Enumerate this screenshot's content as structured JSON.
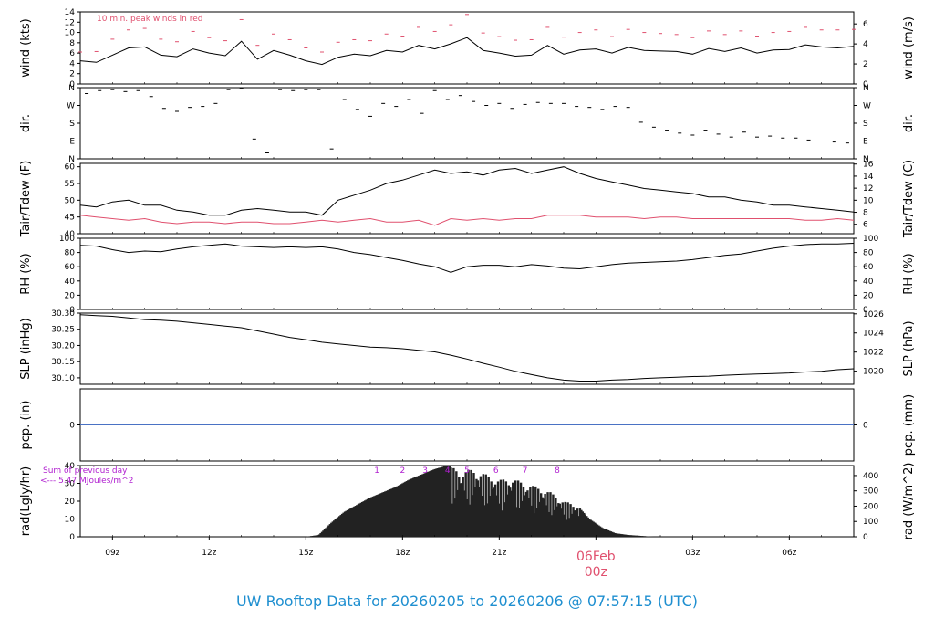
{
  "footer": {
    "title": "UW Rooftop Data for 20260205  to  20260206 @ 07:57:15  (UTC)"
  },
  "time_axis": {
    "ticks": [
      "09z",
      "12z",
      "15z",
      "18z",
      "21z",
      "03z",
      "06z"
    ],
    "day_label": "06Feb",
    "day_hour": "00z",
    "colors": {
      "day_label": "#e0506e"
    }
  },
  "chart_data": [
    {
      "type": "line",
      "id": "wind",
      "ylabel": "wind (kts)",
      "ylabel2": "wind (m/s)",
      "ylim": [
        0,
        14
      ],
      "yticks": [
        0,
        2,
        4,
        6,
        8,
        10,
        12,
        14
      ],
      "yticks2": [
        0,
        2,
        4,
        6
      ],
      "annotation": "10 min. peak winds in red",
      "annotation_color": "#e0506e",
      "x_range_hours": [
        8.0,
        32.0
      ],
      "x": [
        8.0,
        8.5,
        9.0,
        9.5,
        10.0,
        10.5,
        11.0,
        11.5,
        12.0,
        12.5,
        13.0,
        13.5,
        14.0,
        14.5,
        15.0,
        15.5,
        16.0,
        16.5,
        17.0,
        17.5,
        18.0,
        18.5,
        19.0,
        19.5,
        20.0,
        20.5,
        21.0,
        21.5,
        22.0,
        22.5,
        23.0,
        23.5,
        24.0,
        24.5,
        25.0,
        25.5,
        26.0,
        26.5,
        27.0,
        27.5,
        28.0,
        28.5,
        29.0,
        29.5,
        30.0,
        30.5,
        31.0,
        31.5,
        32.0
      ],
      "series": [
        {
          "color": "#000000",
          "values": [
            4.5,
            4.2,
            5.6,
            7.0,
            7.2,
            5.6,
            5.3,
            6.8,
            6.0,
            5.5,
            8.3,
            4.8,
            6.5,
            5.6,
            4.5,
            3.8,
            5.2,
            5.8,
            5.5,
            6.5,
            6.2,
            7.5,
            6.8,
            7.8,
            9.0,
            6.5,
            6.0,
            5.4,
            5.6,
            7.5,
            5.8,
            6.6,
            6.8,
            6.0,
            7.1,
            6.5,
            6.4,
            6.3,
            5.8,
            6.9,
            6.3,
            7.0,
            6.0,
            6.6,
            6.7,
            7.6,
            7.2,
            7.0,
            7.3
          ]
        },
        {
          "color": "#e0506e",
          "values": [
            6.2,
            6.3,
            8.7,
            10.5,
            10.8,
            8.7,
            8.2,
            10.2,
            9.0,
            8.4,
            12.5,
            7.5,
            9.7,
            8.6,
            7.0,
            6.2,
            8.1,
            8.6,
            8.4,
            9.7,
            9.3,
            11.0,
            10.2,
            11.5,
            13.5,
            9.9,
            9.2,
            8.5,
            8.6,
            11.0,
            9.1,
            10.0,
            10.5,
            9.2,
            10.6,
            10.0,
            9.8,
            9.6,
            9.0,
            10.3,
            9.6,
            10.3,
            9.3,
            10.0,
            10.2,
            11.0,
            10.5,
            10.5,
            10.6
          ]
        }
      ]
    },
    {
      "type": "scatter",
      "id": "dir",
      "ylabel": "dir.",
      "ylabel2": "dir.",
      "yticklabels": [
        "N",
        "E",
        "S",
        "W",
        "N"
      ],
      "ylim": [
        0,
        360
      ],
      "x": [
        8.2,
        8.6,
        9.0,
        9.4,
        9.8,
        10.2,
        10.6,
        11.0,
        11.4,
        11.8,
        12.2,
        12.6,
        13.0,
        13.4,
        13.8,
        14.2,
        14.6,
        15.0,
        15.4,
        15.8,
        16.2,
        16.6,
        17.0,
        17.4,
        17.8,
        18.2,
        18.6,
        19.0,
        19.4,
        19.8,
        20.2,
        20.6,
        21.0,
        21.4,
        21.8,
        22.2,
        22.6,
        23.0,
        23.4,
        23.8,
        24.2,
        24.6,
        25.0,
        25.4,
        25.8,
        26.2,
        26.6,
        27.0,
        27.4,
        27.8,
        28.2,
        28.6,
        29.0,
        29.4,
        29.8,
        30.2,
        30.6,
        31.0,
        31.4,
        31.8
      ],
      "values": [
        330,
        345,
        350,
        340,
        345,
        315,
        255,
        240,
        260,
        265,
        280,
        350,
        355,
        100,
        30,
        350,
        345,
        350,
        350,
        50,
        300,
        250,
        215,
        280,
        265,
        300,
        230,
        345,
        300,
        320,
        290,
        270,
        280,
        255,
        275,
        285,
        280,
        280,
        265,
        260,
        250,
        265,
        260,
        185,
        160,
        145,
        130,
        120,
        145,
        125,
        110,
        135,
        110,
        115,
        105,
        105,
        95,
        90,
        85,
        80
      ]
    },
    {
      "type": "line",
      "id": "temp",
      "ylabel": "Tair/Tdew (F)",
      "ylabel2": "Tair/Tdew (C)",
      "ylim": [
        40,
        61
      ],
      "yticks": [
        40,
        45,
        50,
        55,
        60
      ],
      "yticks2": [
        6,
        8,
        10,
        12,
        14,
        16
      ],
      "x": [
        8.0,
        8.5,
        9.0,
        9.5,
        10.0,
        10.5,
        11.0,
        11.5,
        12.0,
        12.5,
        13.0,
        13.5,
        14.0,
        14.5,
        15.0,
        15.5,
        16.0,
        16.5,
        17.0,
        17.5,
        18.0,
        18.5,
        19.0,
        19.5,
        20.0,
        20.5,
        21.0,
        21.5,
        22.0,
        22.5,
        23.0,
        23.5,
        24.0,
        24.5,
        25.0,
        25.5,
        26.0,
        26.5,
        27.0,
        27.5,
        28.0,
        28.5,
        29.0,
        29.5,
        30.0,
        30.5,
        31.0,
        31.5,
        32.0
      ],
      "series": [
        {
          "color": "#000000",
          "values": [
            48.5,
            48.0,
            49.5,
            50.0,
            48.5,
            48.5,
            47.0,
            46.5,
            45.5,
            45.5,
            47.0,
            47.5,
            47.0,
            46.5,
            46.5,
            45.5,
            50.0,
            51.5,
            53.0,
            55.0,
            56.0,
            57.5,
            59.0,
            58.0,
            58.5,
            57.5,
            59.0,
            59.5,
            58.0,
            59.0,
            60.0,
            58.0,
            56.5,
            55.5,
            54.5,
            53.5,
            53.0,
            52.5,
            52.0,
            51.0,
            51.0,
            50.0,
            49.5,
            48.5,
            48.5,
            48.0,
            47.5,
            47.0,
            46.5
          ]
        },
        {
          "color": "#e0506e",
          "values": [
            45.5,
            45.0,
            44.5,
            44.0,
            44.5,
            43.5,
            43.0,
            43.5,
            43.5,
            43.0,
            43.5,
            43.5,
            43.0,
            43.0,
            43.5,
            44.0,
            43.5,
            44.0,
            44.5,
            43.5,
            43.5,
            44.0,
            42.5,
            44.5,
            44.0,
            44.5,
            44.0,
            44.5,
            44.5,
            45.5,
            45.5,
            45.5,
            45.0,
            45.0,
            45.0,
            44.5,
            45.0,
            45.0,
            44.5,
            44.5,
            44.5,
            44.5,
            44.5,
            44.5,
            44.5,
            44.0,
            44.0,
            44.5,
            44.0
          ]
        }
      ]
    },
    {
      "type": "line",
      "id": "rh",
      "ylabel": "RH (%)",
      "ylabel2": "RH (%)",
      "ylim": [
        0,
        100
      ],
      "yticks": [
        0,
        20,
        40,
        60,
        80,
        100
      ],
      "yticks2": [
        0,
        20,
        40,
        60,
        80,
        100
      ],
      "x": [
        8.0,
        8.5,
        9.0,
        9.5,
        10.0,
        10.5,
        11.0,
        11.5,
        12.0,
        12.5,
        13.0,
        13.5,
        14.0,
        14.5,
        15.0,
        15.5,
        16.0,
        16.5,
        17.0,
        17.5,
        18.0,
        18.5,
        19.0,
        19.5,
        20.0,
        20.5,
        21.0,
        21.5,
        22.0,
        22.5,
        23.0,
        23.5,
        24.0,
        24.5,
        25.0,
        25.5,
        26.0,
        26.5,
        27.0,
        27.5,
        28.0,
        28.5,
        29.0,
        29.5,
        30.0,
        30.5,
        31.0,
        31.5,
        32.0
      ],
      "series": [
        {
          "color": "#000000",
          "values": [
            90,
            89,
            84,
            80,
            82,
            81,
            85,
            88,
            90,
            92,
            89,
            88,
            87,
            88,
            87,
            88,
            85,
            80,
            77,
            73,
            69,
            64,
            60,
            52,
            60,
            62,
            62,
            60,
            63,
            61,
            58,
            57,
            60,
            63,
            65,
            66,
            67,
            68,
            70,
            73,
            76,
            78,
            82,
            86,
            89,
            91,
            92,
            92,
            93
          ]
        }
      ]
    },
    {
      "type": "line",
      "id": "slp",
      "ylabel": "SLP (inHg)",
      "ylabel2": "SLP (hPa)",
      "ylim": [
        30.08,
        30.3
      ],
      "yticks": [
        30.1,
        30.15,
        30.2,
        30.25,
        30.3
      ],
      "yticks2": [
        1020,
        1022,
        1024,
        1026
      ],
      "x": [
        8.0,
        8.5,
        9.0,
        9.5,
        10.0,
        10.5,
        11.0,
        11.5,
        12.0,
        12.5,
        13.0,
        13.5,
        14.0,
        14.5,
        15.0,
        15.5,
        16.0,
        16.5,
        17.0,
        17.5,
        18.0,
        18.5,
        19.0,
        19.5,
        20.0,
        20.5,
        21.0,
        21.5,
        22.0,
        22.5,
        23.0,
        23.5,
        24.0,
        24.5,
        25.0,
        25.5,
        26.0,
        26.5,
        27.0,
        27.5,
        28.0,
        28.5,
        29.0,
        29.5,
        30.0,
        30.5,
        31.0,
        31.5,
        32.0
      ],
      "series": [
        {
          "color": "#000000",
          "values": [
            30.295,
            30.292,
            30.29,
            30.285,
            30.28,
            30.278,
            30.275,
            30.27,
            30.265,
            30.26,
            30.255,
            30.245,
            30.235,
            30.225,
            30.218,
            30.21,
            30.205,
            30.2,
            30.195,
            30.193,
            30.19,
            30.185,
            30.18,
            30.17,
            30.158,
            30.145,
            30.133,
            30.12,
            30.11,
            30.1,
            30.093,
            30.09,
            30.09,
            30.093,
            30.095,
            30.098,
            30.1,
            30.102,
            30.104,
            30.105,
            30.108,
            30.11,
            30.112,
            30.113,
            30.115,
            30.118,
            30.12,
            30.125,
            30.128
          ]
        }
      ]
    },
    {
      "type": "line",
      "id": "pcp",
      "ylabel": "pcp. (in)",
      "ylabel2": "pcp. (mm)",
      "yticks": [
        0
      ],
      "yticks2": [
        0
      ],
      "series": [
        {
          "color": "#4a72c4",
          "values": [
            0,
            0
          ]
        }
      ]
    },
    {
      "type": "area",
      "id": "rad",
      "ylabel": "rad(Lgly/hr)",
      "ylabel2": "rad (W/m^2)",
      "ylim": [
        0,
        40
      ],
      "yticks": [
        0,
        10,
        20,
        30,
        40
      ],
      "yticks2": [
        0,
        100,
        200,
        300,
        400
      ],
      "note_line1": "Sum of previous day",
      "note_line2": "<--- 5.47 MJoules/m^2",
      "note_color": "#b020d0",
      "hour_markers": [
        "1",
        "2",
        "3",
        "4",
        "5",
        "6",
        "7",
        "8"
      ],
      "marker_x": [
        17.2,
        18.0,
        18.7,
        19.4,
        20.0,
        20.9,
        21.8,
        22.8
      ],
      "x": [
        15.0,
        15.4,
        15.8,
        16.2,
        16.6,
        17.0,
        17.4,
        17.8,
        18.2,
        18.6,
        19.0,
        19.4,
        19.8,
        20.2,
        20.6,
        21.0,
        21.4,
        21.8,
        22.2,
        22.6,
        23.0,
        23.4,
        23.8,
        24.2,
        24.6,
        25.0,
        25.4,
        25.8
      ],
      "values": [
        0,
        1,
        8,
        14,
        18,
        22,
        25,
        28,
        32,
        35,
        38,
        40,
        37,
        38,
        35,
        32,
        33,
        30,
        28,
        25,
        20,
        18,
        10,
        5,
        2,
        1,
        0.5,
        0
      ]
    }
  ]
}
